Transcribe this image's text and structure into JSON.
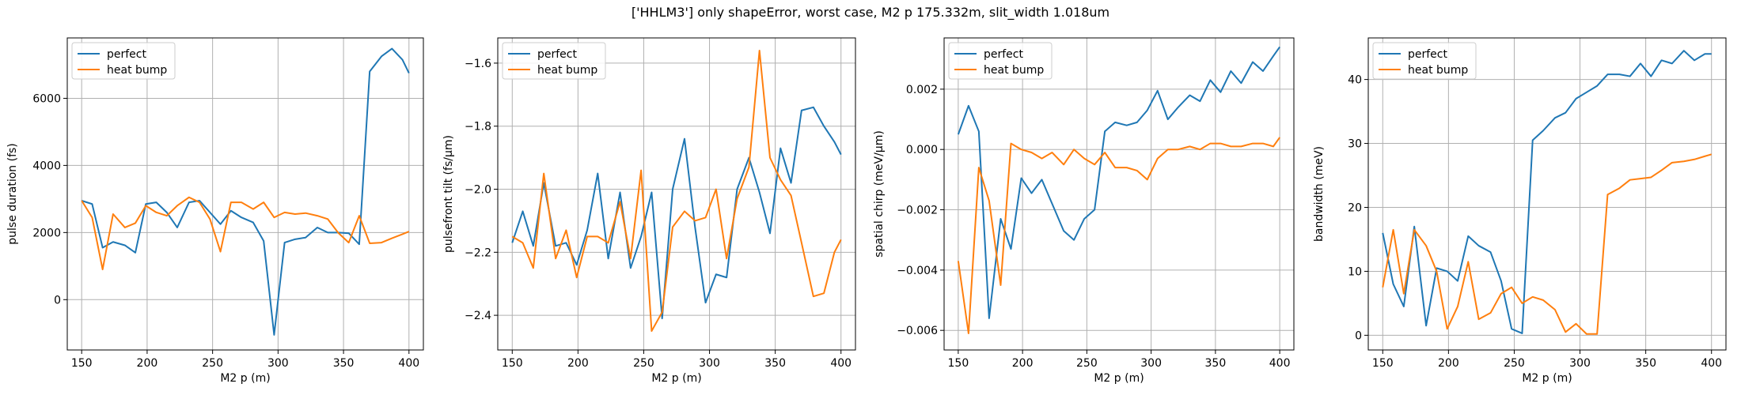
{
  "figure": {
    "title": "['HHLM3'] only shapeError, worst case, M2 p 175.332m, slit_width 1.018um"
  },
  "colors": {
    "perfect": "#1f77b4",
    "heat_bump": "#ff7f0e",
    "grid": "#b0b0b0"
  },
  "chart_data": [
    {
      "type": "line",
      "xlabel": "M2 p (m)",
      "ylabel": "pulse duration (fs)",
      "xlim": [
        139,
        411
      ],
      "ylim": [
        -1500,
        7800
      ],
      "xticks": [
        150,
        200,
        250,
        300,
        350,
        400
      ],
      "yticks": [
        0,
        2000,
        4000,
        6000
      ],
      "ytick_labels": [
        "0",
        "2000",
        "4000",
        "6000"
      ],
      "grid": true,
      "legend": "upper left",
      "x": [
        150,
        158,
        166,
        174,
        183,
        191,
        199,
        207,
        215,
        223,
        232,
        240,
        248,
        256,
        264,
        272,
        281,
        289,
        297,
        305,
        313,
        321,
        330,
        338,
        346,
        354,
        362,
        370,
        379,
        387,
        395,
        400
      ],
      "series": [
        {
          "name": "perfect",
          "values": [
            2950,
            2850,
            1550,
            1720,
            1620,
            1400,
            2850,
            2900,
            2600,
            2150,
            2900,
            2950,
            2600,
            2250,
            2650,
            2450,
            2300,
            1750,
            -1050,
            1700,
            1800,
            1850,
            2150,
            2000,
            2000,
            1980,
            1650,
            6800,
            7250,
            7480,
            7150,
            6750
          ]
        },
        {
          "name": "heat bump",
          "values": [
            2950,
            2450,
            900,
            2550,
            2150,
            2280,
            2800,
            2600,
            2500,
            2800,
            3050,
            2900,
            2400,
            1430,
            2900,
            2900,
            2700,
            2900,
            2450,
            2600,
            2550,
            2580,
            2500,
            2400,
            1990,
            1700,
            2500,
            1680,
            1700,
            1830,
            1950,
            2030
          ]
        }
      ]
    },
    {
      "type": "line",
      "xlabel": "M2 p (m)",
      "ylabel": "pulsefront tilt (fs/μm)",
      "xlim": [
        139,
        411
      ],
      "ylim": [
        -2.51,
        -1.52
      ],
      "xticks": [
        150,
        200,
        250,
        300,
        350,
        400
      ],
      "yticks": [
        -2.4,
        -2.2,
        -2.0,
        -1.8,
        -1.6
      ],
      "ytick_labels": [
        "−2.4",
        "−2.2",
        "−2.0",
        "−1.8",
        "−1.6"
      ],
      "grid": true,
      "legend": "upper left",
      "x": [
        150,
        158,
        166,
        174,
        183,
        191,
        199,
        207,
        215,
        223,
        232,
        240,
        248,
        256,
        264,
        272,
        281,
        289,
        297,
        305,
        313,
        321,
        330,
        338,
        346,
        354,
        362,
        370,
        379,
        387,
        395,
        400
      ],
      "series": [
        {
          "name": "perfect",
          "values": [
            -2.17,
            -2.07,
            -2.18,
            -1.98,
            -2.18,
            -2.17,
            -2.24,
            -2.13,
            -1.95,
            -2.22,
            -2.01,
            -2.25,
            -2.15,
            -2.01,
            -2.41,
            -2.0,
            -1.84,
            -2.12,
            -2.36,
            -2.27,
            -2.28,
            -2.0,
            -1.9,
            -2.01,
            -2.14,
            -1.87,
            -1.98,
            -1.75,
            -1.74,
            -1.8,
            -1.85,
            -1.89
          ]
        },
        {
          "name": "heat bump",
          "values": [
            -2.15,
            -2.17,
            -2.25,
            -1.95,
            -2.22,
            -2.13,
            -2.28,
            -2.15,
            -2.15,
            -2.17,
            -2.04,
            -2.22,
            -1.94,
            -2.45,
            -2.39,
            -2.12,
            -2.07,
            -2.1,
            -2.09,
            -2.0,
            -2.22,
            -2.03,
            -1.93,
            -1.56,
            -1.9,
            -1.97,
            -2.02,
            -2.17,
            -2.34,
            -2.33,
            -2.2,
            -2.16
          ]
        }
      ]
    },
    {
      "type": "line",
      "xlabel": "M2 p (m)",
      "ylabel": "spatial chirp (meV/μm)",
      "xlim": [
        139,
        411
      ],
      "ylim": [
        -0.00665,
        0.0037
      ],
      "xticks": [
        150,
        200,
        250,
        300,
        350,
        400
      ],
      "yticks": [
        -0.006,
        -0.004,
        -0.002,
        0.0,
        0.002
      ],
      "ytick_labels": [
        "−0.006",
        "−0.004",
        "−0.002",
        "0.000",
        "0.002"
      ],
      "grid": true,
      "legend": "upper left",
      "x": [
        150,
        158,
        166,
        174,
        183,
        191,
        199,
        207,
        215,
        223,
        232,
        240,
        248,
        256,
        264,
        272,
        281,
        289,
        297,
        305,
        313,
        321,
        330,
        338,
        346,
        354,
        362,
        370,
        379,
        387,
        395,
        400
      ],
      "series": [
        {
          "name": "perfect",
          "values": [
            0.0005,
            0.00145,
            0.0006,
            -0.0056,
            -0.0023,
            -0.0033,
            -0.00095,
            -0.00145,
            -0.001,
            -0.0018,
            -0.0027,
            -0.003,
            -0.0023,
            -0.002,
            0.0006,
            0.0009,
            0.0008,
            0.0009,
            0.0013,
            0.00195,
            0.001,
            0.0014,
            0.0018,
            0.0016,
            0.0023,
            0.0019,
            0.0026,
            0.0022,
            0.0029,
            0.0026,
            0.0031,
            0.0034
          ]
        },
        {
          "name": "heat bump",
          "values": [
            -0.0037,
            -0.0061,
            -0.0006,
            -0.0017,
            -0.0045,
            0.0002,
            0.0,
            -0.0001,
            -0.0003,
            -0.0001,
            -0.0005,
            0.0,
            -0.0003,
            -0.0005,
            -0.0001,
            -0.0006,
            -0.0006,
            -0.0007,
            -0.001,
            -0.0003,
            0.0,
            0.0,
            0.0001,
            0.0,
            0.0002,
            0.0002,
            0.0001,
            0.0001,
            0.0002,
            0.0002,
            0.0001,
            0.0004
          ]
        }
      ]
    },
    {
      "type": "line",
      "xlabel": "M2 p (m)",
      "ylabel": "bandwidth (meV)",
      "xlim": [
        139,
        411
      ],
      "ylim": [
        -2.3,
        46.5
      ],
      "xticks": [
        150,
        200,
        250,
        300,
        350,
        400
      ],
      "yticks": [
        0,
        10,
        20,
        30,
        40
      ],
      "ytick_labels": [
        "0",
        "10",
        "20",
        "30",
        "40"
      ],
      "grid": true,
      "legend": "upper left",
      "x": [
        150,
        158,
        166,
        174,
        183,
        191,
        199,
        207,
        215,
        223,
        232,
        240,
        248,
        256,
        264,
        272,
        281,
        289,
        297,
        305,
        313,
        321,
        330,
        338,
        346,
        354,
        362,
        370,
        379,
        387,
        395,
        400
      ],
      "series": [
        {
          "name": "perfect",
          "values": [
            16,
            8,
            4.5,
            17,
            1.5,
            10.5,
            10,
            8.5,
            15.5,
            14,
            13,
            8.5,
            1,
            0.3,
            30.5,
            32,
            34,
            34.8,
            37,
            38,
            39,
            40.8,
            40.8,
            40.5,
            42.5,
            40.5,
            43,
            42.5,
            44.5,
            43,
            44,
            44
          ]
        },
        {
          "name": "heat bump",
          "values": [
            7.5,
            16.5,
            6.5,
            16.5,
            14,
            10,
            1,
            4.5,
            11.5,
            2.5,
            3.5,
            6.5,
            7.5,
            5,
            6,
            5.5,
            4,
            0.5,
            1.8,
            0.2,
            0.2,
            22,
            23,
            24.3,
            24.5,
            24.7,
            25.8,
            27,
            27.2,
            27.5,
            28,
            28.3
          ]
        }
      ]
    }
  ]
}
